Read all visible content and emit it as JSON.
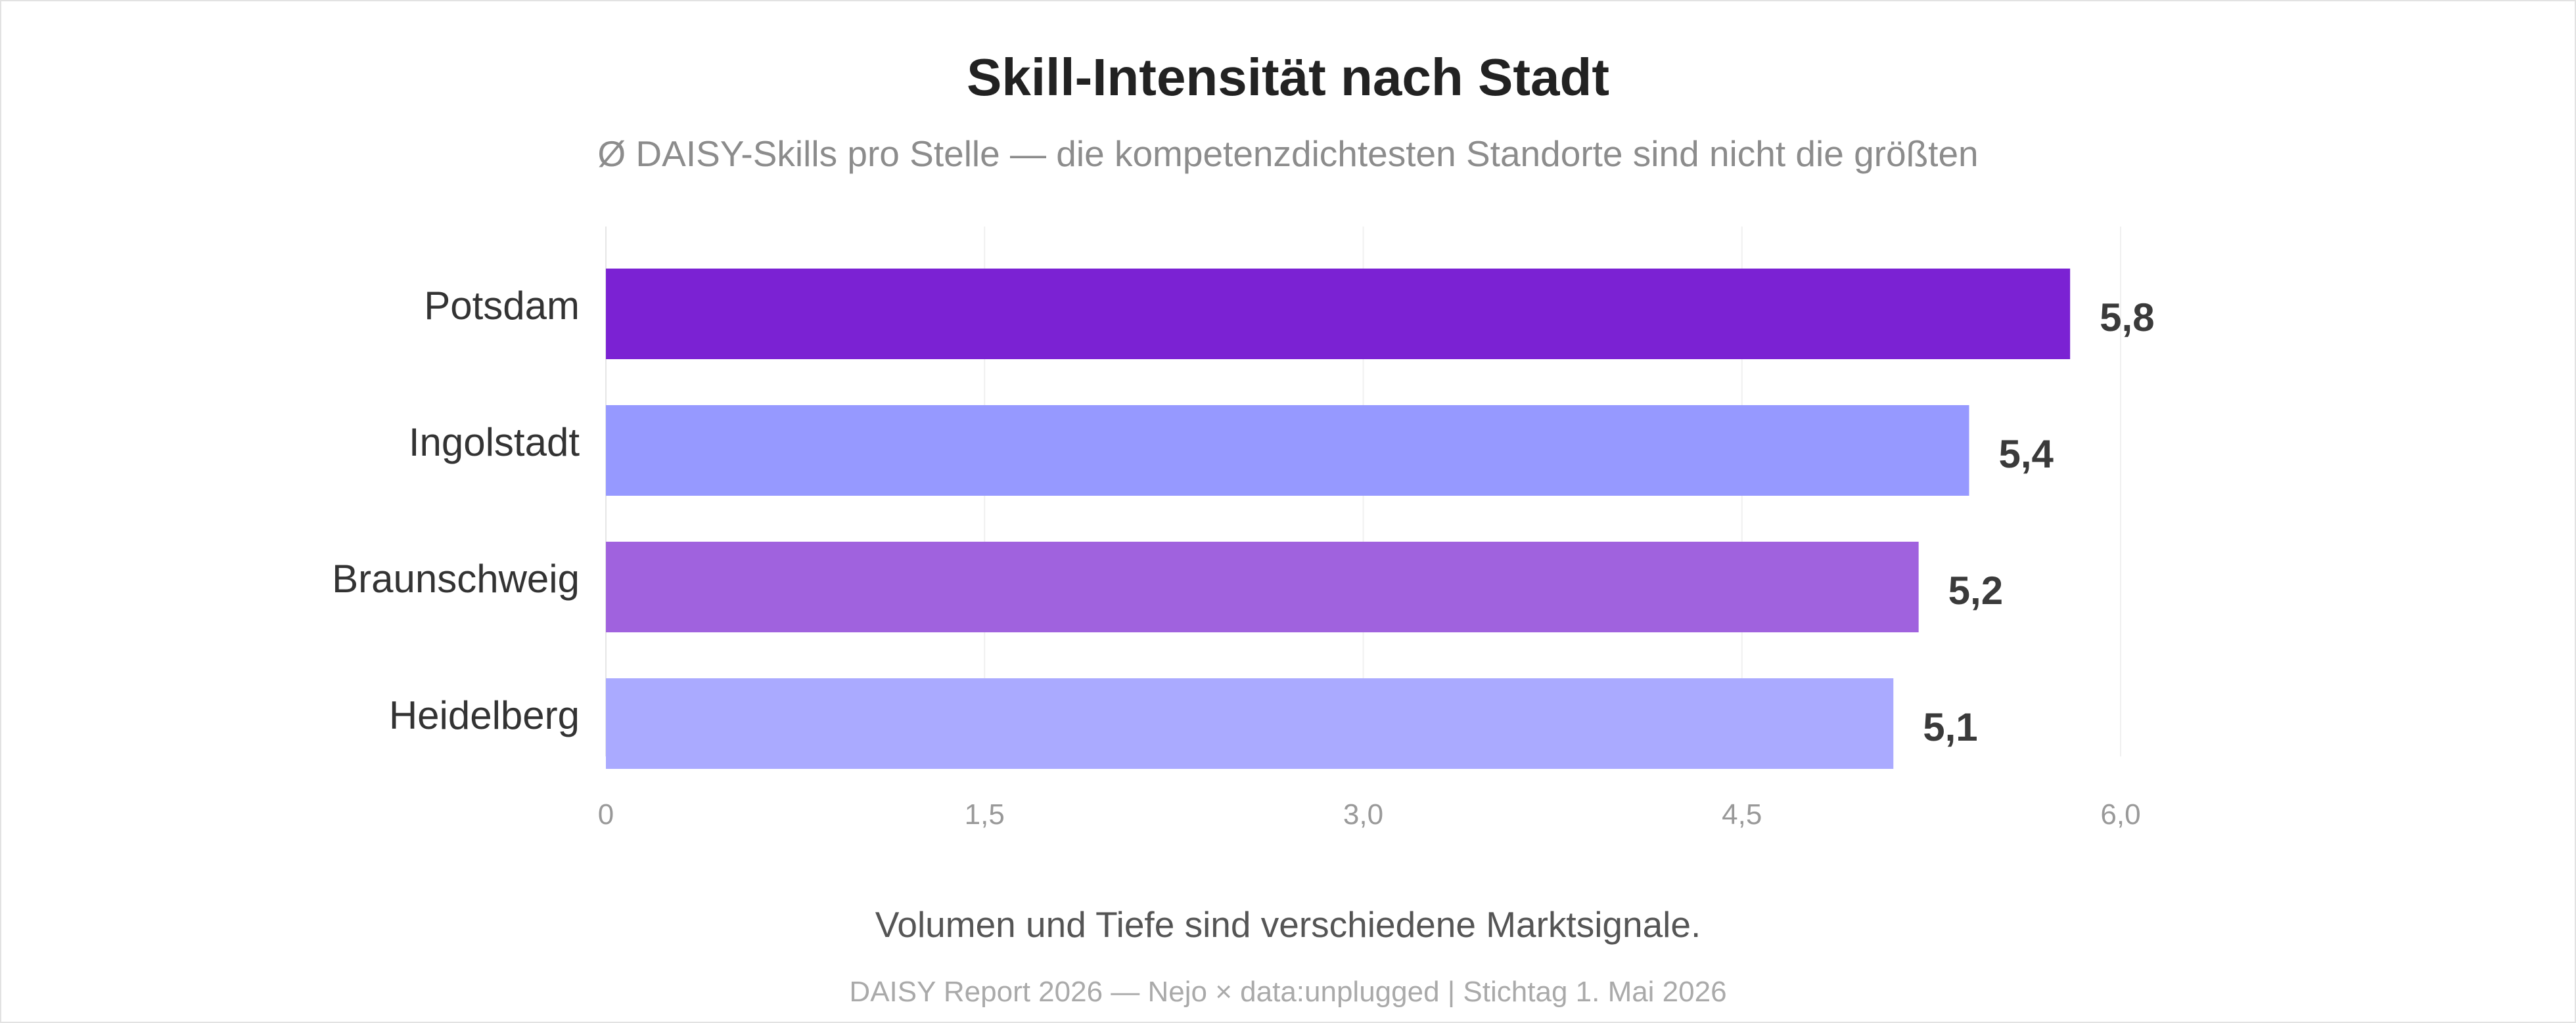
{
  "chart_data": {
    "type": "bar",
    "orientation": "horizontal",
    "title": "Skill-Intensität nach Stadt",
    "subtitle": "Ø DAISY-Skills pro Stelle — die kompetenzdichtesten Standorte sind nicht die größten",
    "categories": [
      "Potsdam",
      "Ingolstadt",
      "Braunschweig",
      "Heidelberg"
    ],
    "values": [
      5.8,
      5.4,
      5.2,
      5.1
    ],
    "value_labels": [
      "5,8",
      "5,4",
      "5,2",
      "5,1"
    ],
    "bar_colors": [
      "#7b22d3",
      "#9699ff",
      "#a062de",
      "#aaaaff"
    ],
    "xlim": [
      0,
      6
    ],
    "x_ticks": [
      0,
      1.5,
      3,
      4.5,
      6
    ],
    "x_tick_labels": [
      "0",
      "1,5",
      "3,0",
      "4,5",
      "6,0"
    ],
    "grid": true,
    "xlabel": "",
    "ylabel": ""
  },
  "caption": "Volumen und Tiefe sind verschiedene Marktsignale.",
  "footer": "DAISY Report 2026 — Nejo × data:unplugged | Stichtag 1. Mai 2026"
}
